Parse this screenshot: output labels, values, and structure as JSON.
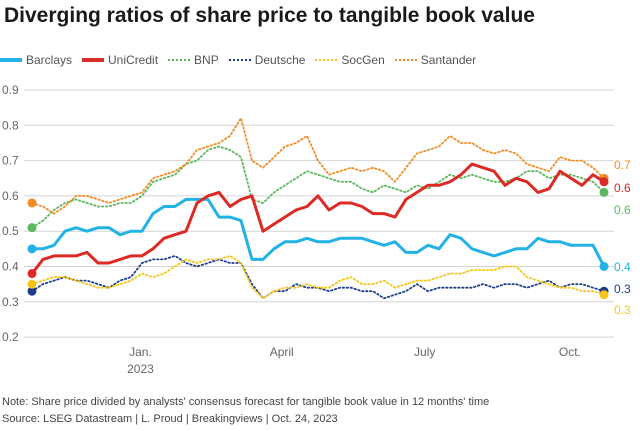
{
  "chart_data": {
    "type": "line",
    "title": "Diverging ratios of share price to tangible book value",
    "xlabel": "",
    "ylabel": "",
    "x_unit": "weeks from start (late Oct. 2022)",
    "x": [
      0,
      1,
      2,
      3,
      4,
      5,
      6,
      7,
      8,
      9,
      10,
      11,
      12,
      13,
      14,
      15,
      16,
      17,
      18,
      19,
      20,
      21,
      22,
      23,
      24,
      25,
      26,
      27,
      28,
      29,
      30,
      31,
      32,
      33,
      34,
      35,
      36,
      37,
      38,
      39,
      40,
      41,
      42,
      43,
      44,
      45,
      46,
      47,
      48,
      49,
      50,
      51,
      52
    ],
    "ylim": [
      0.2,
      0.9
    ],
    "yticks": [
      "0.9",
      "0.8",
      "0.7",
      "0.6",
      "0.5",
      "0.4",
      "0.3",
      "0.2"
    ],
    "ytick_values": [
      0.9,
      0.8,
      0.7,
      0.6,
      0.5,
      0.4,
      0.3,
      0.2
    ],
    "xticks": [
      {
        "week": 9.86,
        "label": "Jan.",
        "sublabel": "2023"
      },
      {
        "week": 22.7,
        "label": "April",
        "sublabel": ""
      },
      {
        "week": 35.7,
        "label": "July",
        "sublabel": ""
      },
      {
        "week": 48.9,
        "label": "Oct.",
        "sublabel": ""
      }
    ],
    "grid": true,
    "legend_position": "top-left",
    "series": [
      {
        "name": "Barclays",
        "color": "#22b2e6",
        "style": "solid",
        "end_label": "0.4",
        "values": [
          0.45,
          0.45,
          0.46,
          0.5,
          0.51,
          0.5,
          0.51,
          0.51,
          0.49,
          0.5,
          0.5,
          0.55,
          0.57,
          0.57,
          0.59,
          0.59,
          0.59,
          0.54,
          0.54,
          0.53,
          0.42,
          0.42,
          0.45,
          0.47,
          0.47,
          0.48,
          0.47,
          0.47,
          0.48,
          0.48,
          0.48,
          0.47,
          0.46,
          0.47,
          0.44,
          0.44,
          0.46,
          0.45,
          0.49,
          0.48,
          0.45,
          0.44,
          0.43,
          0.44,
          0.45,
          0.45,
          0.48,
          0.47,
          0.47,
          0.46,
          0.46,
          0.46,
          0.4
        ]
      },
      {
        "name": "UniCredit",
        "color": "#dc2a24",
        "style": "solid",
        "end_label": "0.6",
        "values": [
          0.38,
          0.42,
          0.43,
          0.43,
          0.43,
          0.44,
          0.41,
          0.41,
          0.42,
          0.43,
          0.43,
          0.45,
          0.48,
          0.49,
          0.5,
          0.58,
          0.6,
          0.61,
          0.57,
          0.59,
          0.6,
          0.5,
          0.52,
          0.54,
          0.56,
          0.57,
          0.6,
          0.56,
          0.58,
          0.58,
          0.57,
          0.55,
          0.55,
          0.54,
          0.59,
          0.61,
          0.63,
          0.63,
          0.64,
          0.66,
          0.69,
          0.68,
          0.67,
          0.63,
          0.65,
          0.64,
          0.61,
          0.62,
          0.67,
          0.65,
          0.63,
          0.66,
          0.64
        ]
      },
      {
        "name": "BNP",
        "color": "#5cb85c",
        "style": "dotted",
        "end_label": "0.6",
        "values": [
          0.51,
          0.53,
          0.56,
          0.58,
          0.59,
          0.58,
          0.57,
          0.57,
          0.58,
          0.58,
          0.6,
          0.64,
          0.65,
          0.66,
          0.69,
          0.7,
          0.73,
          0.74,
          0.73,
          0.71,
          0.59,
          0.58,
          0.61,
          0.63,
          0.65,
          0.67,
          0.66,
          0.65,
          0.64,
          0.64,
          0.62,
          0.61,
          0.63,
          0.62,
          0.61,
          0.63,
          0.62,
          0.64,
          0.66,
          0.65,
          0.66,
          0.65,
          0.64,
          0.64,
          0.65,
          0.67,
          0.67,
          0.65,
          0.66,
          0.66,
          0.65,
          0.64,
          0.61
        ]
      },
      {
        "name": "Deutsche",
        "color": "#1d3d8c",
        "style": "dotted",
        "end_label": "0.3",
        "values": [
          0.33,
          0.35,
          0.36,
          0.37,
          0.36,
          0.36,
          0.35,
          0.34,
          0.36,
          0.37,
          0.41,
          0.42,
          0.42,
          0.43,
          0.41,
          0.4,
          0.41,
          0.42,
          0.41,
          0.41,
          0.35,
          0.31,
          0.33,
          0.33,
          0.35,
          0.34,
          0.34,
          0.33,
          0.34,
          0.34,
          0.33,
          0.33,
          0.31,
          0.32,
          0.33,
          0.35,
          0.33,
          0.34,
          0.34,
          0.34,
          0.34,
          0.35,
          0.34,
          0.35,
          0.35,
          0.34,
          0.35,
          0.36,
          0.34,
          0.35,
          0.35,
          0.34,
          0.33
        ]
      },
      {
        "name": "SocGen",
        "color": "#f5c518",
        "style": "dotted",
        "end_label": "0.3",
        "values": [
          0.35,
          0.36,
          0.37,
          0.37,
          0.36,
          0.35,
          0.34,
          0.34,
          0.35,
          0.36,
          0.38,
          0.37,
          0.38,
          0.4,
          0.42,
          0.41,
          0.42,
          0.42,
          0.43,
          0.41,
          0.34,
          0.31,
          0.33,
          0.34,
          0.34,
          0.35,
          0.34,
          0.34,
          0.36,
          0.37,
          0.35,
          0.35,
          0.36,
          0.34,
          0.35,
          0.36,
          0.36,
          0.37,
          0.38,
          0.38,
          0.39,
          0.39,
          0.39,
          0.4,
          0.4,
          0.37,
          0.36,
          0.35,
          0.34,
          0.34,
          0.33,
          0.33,
          0.32
        ]
      },
      {
        "name": "Santander",
        "color": "#f28c28",
        "style": "dotted",
        "end_label": "0.7",
        "values": [
          0.58,
          0.57,
          0.55,
          0.57,
          0.6,
          0.6,
          0.59,
          0.58,
          0.59,
          0.6,
          0.61,
          0.65,
          0.66,
          0.67,
          0.69,
          0.73,
          0.74,
          0.75,
          0.77,
          0.82,
          0.7,
          0.68,
          0.71,
          0.74,
          0.75,
          0.77,
          0.7,
          0.66,
          0.67,
          0.68,
          0.67,
          0.68,
          0.67,
          0.64,
          0.68,
          0.72,
          0.73,
          0.74,
          0.77,
          0.75,
          0.75,
          0.73,
          0.72,
          0.73,
          0.72,
          0.69,
          0.68,
          0.67,
          0.71,
          0.7,
          0.7,
          0.68,
          0.65
        ]
      }
    ]
  },
  "footer": {
    "note": "Note: Share price divided by analysts' consensus forecast for tangible book value in 12 months' time",
    "source": "Source: LSEG Datastream | L. Proud | Breakingviews | Oct. 24, 2023"
  }
}
